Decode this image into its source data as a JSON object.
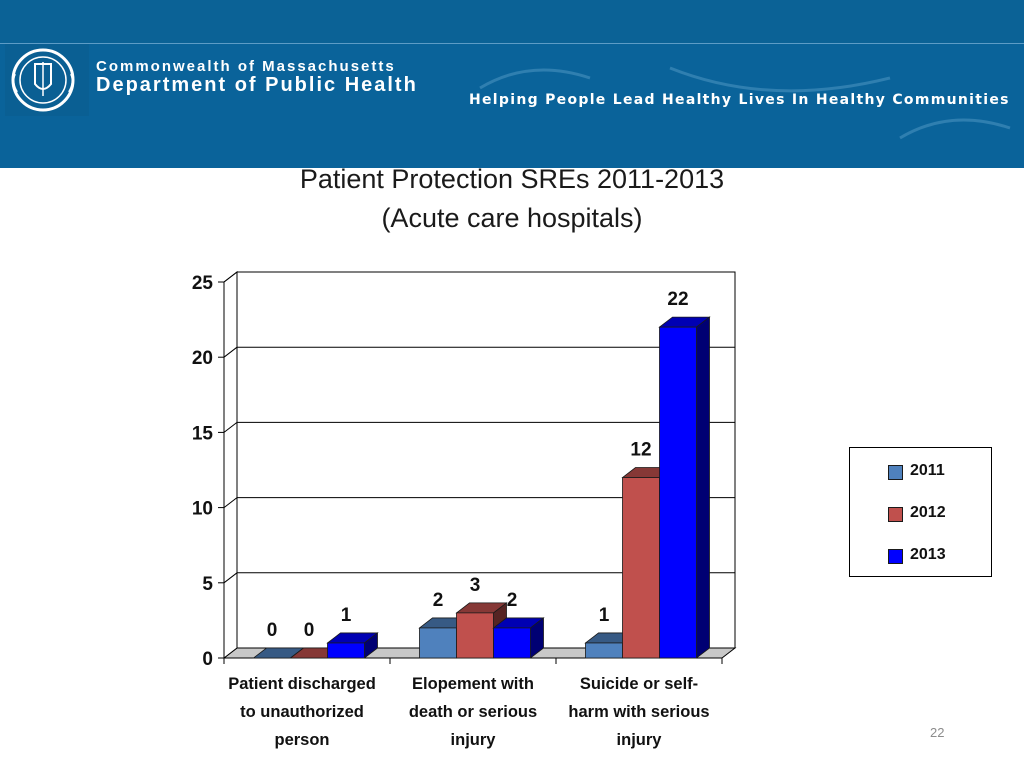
{
  "header": {
    "org_line1": "Commonwealth of Massachusetts",
    "org_line2": "Department of Public Health",
    "tagline": "Helping People Lead Healthy Lives In Healthy Communities"
  },
  "page_number": "22",
  "colors": {
    "banner": "#0a639a",
    "s2011": "#4f81bd",
    "s2012": "#c0504d",
    "s2013": "#0000ff"
  },
  "chart_data": {
    "type": "bar",
    "title": "Patient Protection SREs 2011-2013",
    "subtitle": "(Acute care hospitals)",
    "categories": [
      [
        "Patient discharged",
        "to unauthorized",
        "person"
      ],
      [
        "Elopement with",
        "death or serious",
        "injury"
      ],
      [
        "Suicide or self-",
        "harm with serious",
        "injury"
      ]
    ],
    "series": [
      {
        "name": "2011",
        "values": [
          0,
          2,
          1
        ],
        "color": "#4f81bd"
      },
      {
        "name": "2012",
        "values": [
          0,
          3,
          12
        ],
        "color": "#c0504d"
      },
      {
        "name": "2013",
        "values": [
          1,
          2,
          22
        ],
        "color": "#0000ff"
      }
    ],
    "yticks": [
      0,
      5,
      10,
      15,
      20,
      25
    ],
    "ylim": [
      0,
      25
    ],
    "grid": true,
    "legend_position": "right",
    "style": "3d-clustered-bar"
  }
}
